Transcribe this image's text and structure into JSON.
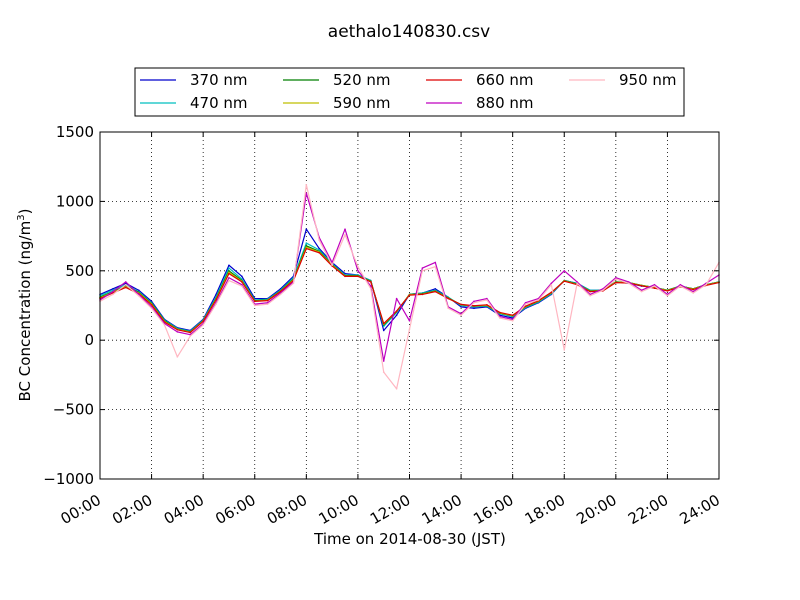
{
  "chart_data": {
    "type": "line",
    "title": "aethalo140830.csv",
    "xlabel": "Time on 2014-08-30 (JST)",
    "ylabel": "BC Concentration (ng/m",
    "ylabel_sup": "3",
    "ylabel_close": ")",
    "x_unit": "hours since 00:00",
    "xlim": [
      0,
      24
    ],
    "ylim": [
      -1000,
      1500
    ],
    "x_ticks": [
      {
        "x": 0,
        "label": "00:00"
      },
      {
        "x": 2,
        "label": "02:00"
      },
      {
        "x": 4,
        "label": "04:00"
      },
      {
        "x": 6,
        "label": "06:00"
      },
      {
        "x": 8,
        "label": "08:00"
      },
      {
        "x": 10,
        "label": "10:00"
      },
      {
        "x": 12,
        "label": "12:00"
      },
      {
        "x": 14,
        "label": "14:00"
      },
      {
        "x": 16,
        "label": "16:00"
      },
      {
        "x": 18,
        "label": "18:00"
      },
      {
        "x": 20,
        "label": "20:00"
      },
      {
        "x": 22,
        "label": "22:00"
      },
      {
        "x": 24,
        "label": "24:00"
      }
    ],
    "y_ticks": [
      {
        "y": -1000,
        "label": "−1000"
      },
      {
        "y": -500,
        "label": "−500"
      },
      {
        "y": 0,
        "label": "0"
      },
      {
        "y": 500,
        "label": "500"
      },
      {
        "y": 1000,
        "label": "1000"
      },
      {
        "y": 1500,
        "label": "1500"
      }
    ],
    "grid": true,
    "legend_position": "top-center",
    "x": [
      0,
      0.5,
      1,
      1.5,
      2,
      2.5,
      3,
      3.5,
      4,
      4.5,
      5,
      5.5,
      6,
      6.5,
      7,
      7.5,
      8,
      8.5,
      9,
      9.5,
      10,
      10.5,
      11,
      11.5,
      12,
      12.5,
      13,
      13.5,
      14,
      14.5,
      15,
      15.5,
      16,
      16.5,
      17,
      17.5,
      18,
      18.5,
      19,
      19.5,
      20,
      20.5,
      21,
      21.5,
      22,
      22.5,
      23,
      23.5,
      24
    ],
    "series": [
      {
        "name": "370 nm",
        "color": "#0000cc",
        "values": [
          330,
          370,
          410,
          360,
          280,
          150,
          90,
          70,
          150,
          330,
          540,
          460,
          300,
          300,
          370,
          460,
          800,
          660,
          560,
          480,
          470,
          430,
          70,
          180,
          330,
          340,
          370,
          310,
          240,
          230,
          240,
          180,
          160,
          230,
          270,
          330,
          430,
          410,
          360,
          360,
          420,
          410,
          390,
          380,
          360,
          390,
          370,
          400,
          420
        ]
      },
      {
        "name": "470 nm",
        "color": "#00bfbf",
        "values": [
          320,
          360,
          400,
          350,
          270,
          145,
          85,
          65,
          145,
          310,
          520,
          440,
          290,
          295,
          360,
          450,
          700,
          650,
          550,
          470,
          470,
          430,
          100,
          200,
          330,
          340,
          360,
          310,
          250,
          240,
          245,
          190,
          170,
          235,
          275,
          335,
          430,
          410,
          360,
          360,
          420,
          415,
          395,
          380,
          360,
          390,
          370,
          400,
          420
        ]
      },
      {
        "name": "520 nm",
        "color": "#007f00",
        "values": [
          310,
          350,
          390,
          345,
          265,
          140,
          80,
          60,
          140,
          300,
          500,
          430,
          285,
          290,
          355,
          440,
          680,
          640,
          545,
          465,
          465,
          425,
          110,
          205,
          330,
          335,
          355,
          305,
          255,
          245,
          250,
          195,
          175,
          240,
          280,
          340,
          430,
          405,
          355,
          360,
          420,
          415,
          395,
          380,
          360,
          390,
          370,
          400,
          420
        ]
      },
      {
        "name": "590 nm",
        "color": "#bfbf00",
        "values": [
          305,
          345,
          385,
          340,
          260,
          135,
          78,
          58,
          138,
          295,
          490,
          425,
          282,
          288,
          352,
          435,
          670,
          635,
          540,
          462,
          462,
          422,
          115,
          208,
          328,
          332,
          352,
          302,
          256,
          246,
          252,
          197,
          177,
          242,
          282,
          342,
          428,
          402,
          352,
          358,
          418,
          414,
          394,
          378,
          358,
          388,
          368,
          398,
          418
        ]
      },
      {
        "name": "660 nm",
        "color": "#dd0000",
        "values": [
          300,
          340,
          380,
          335,
          255,
          130,
          75,
          55,
          135,
          290,
          480,
          420,
          280,
          285,
          350,
          430,
          660,
          630,
          535,
          460,
          460,
          420,
          120,
          210,
          325,
          330,
          350,
          300,
          258,
          248,
          255,
          200,
          180,
          245,
          285,
          345,
          425,
          400,
          350,
          355,
          415,
          412,
          392,
          375,
          355,
          385,
          365,
          395,
          415
        ]
      },
      {
        "name": "880 nm",
        "color": "#bf00bf",
        "values": [
          290,
          350,
          420,
          330,
          240,
          120,
          60,
          40,
          120,
          270,
          450,
          400,
          260,
          270,
          340,
          420,
          1060,
          740,
          560,
          800,
          500,
          390,
          -150,
          300,
          140,
          520,
          560,
          240,
          190,
          280,
          300,
          170,
          150,
          270,
          300,
          410,
          500,
          420,
          330,
          370,
          450,
          420,
          360,
          400,
          330,
          400,
          350,
          410,
          470
        ]
      },
      {
        "name": "950 nm",
        "color": "#ffb6c1",
        "values": [
          280,
          330,
          400,
          320,
          230,
          110,
          -120,
          30,
          110,
          260,
          430,
          390,
          250,
          260,
          330,
          410,
          1120,
          720,
          540,
          760,
          530,
          370,
          -230,
          -350,
          80,
          500,
          530,
          230,
          180,
          270,
          290,
          160,
          140,
          260,
          290,
          400,
          -70,
          410,
          320,
          360,
          440,
          410,
          350,
          390,
          320,
          390,
          340,
          400,
          560
        ]
      }
    ]
  }
}
